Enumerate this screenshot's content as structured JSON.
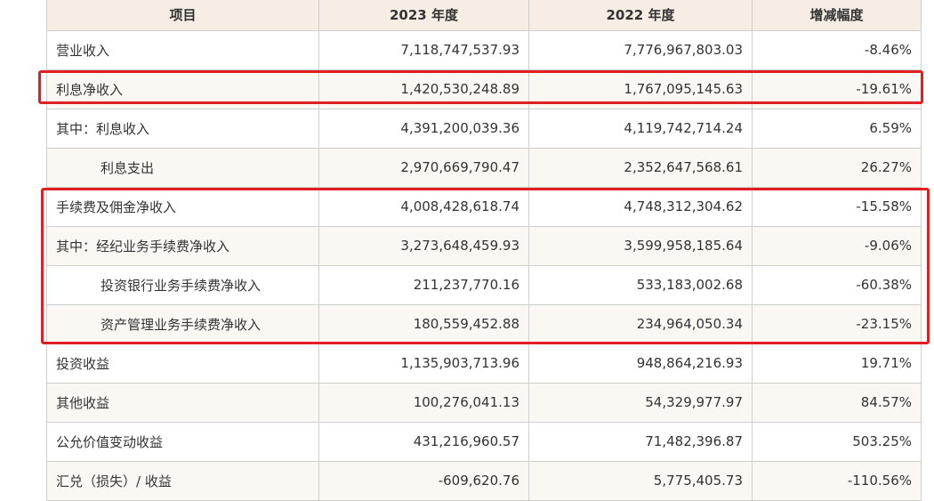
{
  "table": {
    "headers": [
      "项目",
      "2023 年度",
      "2022 年度",
      "增减幅度"
    ],
    "rows": [
      {
        "item": "营业收入",
        "y2023": "7,118,747,537.93",
        "y2022": "7,776,967,803.03",
        "change": "-8.46%"
      },
      {
        "item": "利息净收入",
        "y2023": "1,420,530,248.89",
        "y2022": "1,767,095,145.63",
        "change": "-19.61%"
      },
      {
        "item": "其中：利息收入",
        "y2023": "4,391,200,039.36",
        "y2022": "4,119,742,714.24",
        "change": "6.59%"
      },
      {
        "item": "利息支出",
        "y2023": "2,970,669,790.47",
        "y2022": "2,352,647,568.61",
        "change": "26.27%"
      },
      {
        "item": "手续费及佣金净收入",
        "y2023": "4,008,428,618.74",
        "y2022": "4,748,312,304.62",
        "change": "-15.58%"
      },
      {
        "item": "其中：经纪业务手续费净收入",
        "y2023": "3,273,648,459.93",
        "y2022": "3,599,958,185.64",
        "change": "-9.06%"
      },
      {
        "item": "投资银行业务手续费净收入",
        "y2023": "211,237,770.16",
        "y2022": "533,183,002.68",
        "change": "-60.38%"
      },
      {
        "item": "资产管理业务手续费净收入",
        "y2023": "180,559,452.88",
        "y2022": "234,964,050.34",
        "change": "-23.15%"
      },
      {
        "item": "投资收益",
        "y2023": "1,135,903,713.96",
        "y2022": "948,864,216.93",
        "change": "19.71%"
      },
      {
        "item": "其他收益",
        "y2023": "100,276,041.13",
        "y2022": "54,329,977.97",
        "change": "84.57%"
      },
      {
        "item": "公允价值变动收益",
        "y2023": "431,216,960.57",
        "y2022": "71,482,396.87",
        "change": "503.25%"
      },
      {
        "item": "汇兑（损失）/ 收益",
        "y2023": "-609,620.76",
        "y2022": "5,775,405.73",
        "change": "-110.56%"
      }
    ]
  },
  "colors": {
    "header_bg": "#f6ede5",
    "border": "#cfcfcf",
    "highlight": "#e02020"
  }
}
